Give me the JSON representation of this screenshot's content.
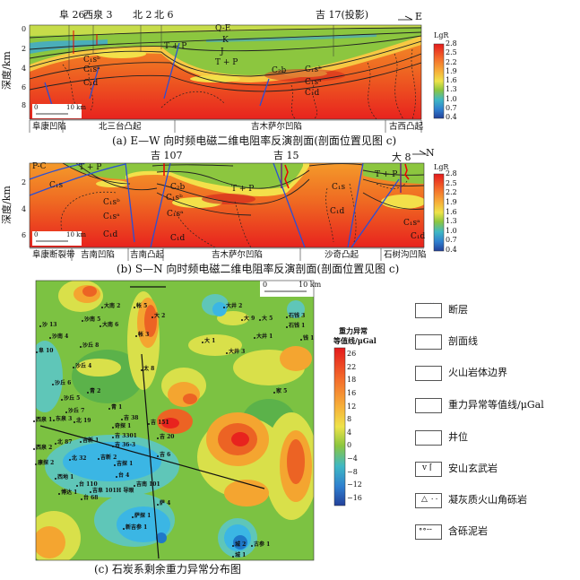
{
  "panel_a": {
    "caption": "(a) E—W 向时频电磁二维电阻率反演剖面(剖面位置见图 c)",
    "direction": "E",
    "y_axis_label": "深度/km",
    "y_ticks": [
      "0",
      "2",
      "4",
      "6",
      "8"
    ],
    "wells": [
      "阜 26",
      "西泉 3",
      "北 2",
      "北 6",
      "吉 17(投影)"
    ],
    "formations": [
      "Q-E",
      "K",
      "J",
      "T + P",
      "T + P",
      "C₁sᵇ",
      "C₁sᵃ",
      "C₁d",
      "C₂b",
      "C₁sᵇ",
      "C₁sᵃ",
      "C₁d"
    ],
    "scale": {
      "zero": "0",
      "max": "10 km"
    },
    "regions": [
      "阜康凹陷",
      "北三台凸起",
      "吉木萨尔凹陷",
      "古西凸起"
    ],
    "colorbar": {
      "title": "LgR",
      "ticks": [
        "2.8",
        "2.5",
        "2.2",
        "1.9",
        "1.6",
        "1.3",
        "1.0",
        "0.7",
        "0.4"
      ]
    }
  },
  "panel_b": {
    "caption": "(b) S—N 向时频电磁二维电阻率反演剖面(剖面位置见图 c)",
    "direction": "N",
    "y_axis_label": "深度/km",
    "y_ticks": [
      "2",
      "4",
      "6"
    ],
    "wells": [
      "吉 107",
      "吉 15",
      "大 8"
    ],
    "formations": [
      "P-C",
      "T + P",
      "C₁s",
      "C₁sᵇ",
      "C₁sᵃ",
      "C₁d",
      "C₂b",
      "C₁sᵇ",
      "C₁sᵃ",
      "C₁d",
      "T + P",
      "C₁s",
      "C₁d",
      "T + P",
      "C₁sᵃ",
      "C₁d"
    ],
    "scale": {
      "zero": "0",
      "max": "10 km"
    },
    "regions": [
      "阜康断裂带",
      "吉南凹陷",
      "吉南凸起",
      "吉木萨尔凹陷",
      "沙奇凸起",
      "石树沟凹陷"
    ],
    "colorbar": {
      "title": "LgR",
      "ticks": [
        "2.8",
        "2.5",
        "2.2",
        "1.9",
        "1.6",
        "1.3",
        "1.0",
        "0.7",
        "0.4"
      ]
    }
  },
  "panel_c": {
    "caption": "(c) 石炭系剩余重力异常分布图",
    "scale": {
      "zero": "0",
      "max": "10 km"
    },
    "wells": [
      "大南 2",
      "帐 5",
      "大 2",
      "沙 13",
      "沙南 5",
      "大南 6",
      "沙南 4",
      "帐 3",
      "沙丘 8",
      "阜 10",
      "沙丘 4",
      "太 8",
      "沙丘 6",
      "青 2",
      "沙丘 5",
      "青 1",
      "沙丘 7",
      "西泉 1",
      "东泉 3",
      "北 19",
      "吉 38",
      "奇探 1",
      "吉 151",
      "大井 2",
      "大 9",
      "大 5",
      "石钱 3",
      "石钱 1",
      "大井 1",
      "钱 1",
      "大 1",
      "大井 3",
      "家 5",
      "北 87",
      "西泉 2",
      "吉新 1",
      "吉 3301",
      "吉 20",
      "吉 36-3",
      "吉新 2",
      "北 32",
      "康探 2",
      "吉探 1",
      "吉 6",
      "台 4",
      "西地 1",
      "台 110",
      "吉南 101",
      "博达 1",
      "吉阜 101H 导眼",
      "台 68",
      "萨 4",
      "萨探 1",
      "新吉参 1",
      "城 2",
      "古参 1",
      "城 1"
    ],
    "colorbar": {
      "title_line1": "重力异常",
      "title_line2": "等值线/μGal",
      "ticks": [
        "26",
        "22",
        "18",
        "16",
        "12",
        "8",
        "4",
        "0",
        "−4",
        "−8",
        "−12",
        "−16"
      ]
    }
  },
  "legend": [
    {
      "icon": "fault-icon",
      "label": "断层"
    },
    {
      "icon": "section-line-icon",
      "label": "剖面线"
    },
    {
      "icon": "volcanic-boundary-icon",
      "label": "火山岩体边界"
    },
    {
      "icon": "gravity-contour-icon",
      "label": "重力异常等值线/μGal"
    },
    {
      "icon": "well-icon",
      "label": "井位"
    },
    {
      "icon": "andesite-basalt-icon",
      "label": "安山玄武岩"
    },
    {
      "icon": "tuff-breccia-icon",
      "label": "凝灰质火山角砾岩"
    },
    {
      "icon": "gravel-mudstone-icon",
      "label": "含砾泥岩"
    }
  ],
  "colors": {
    "high": "#e8231e",
    "mid": "#f5a623",
    "low_green": "#7cc242",
    "low_blue": "#1f78c8"
  }
}
